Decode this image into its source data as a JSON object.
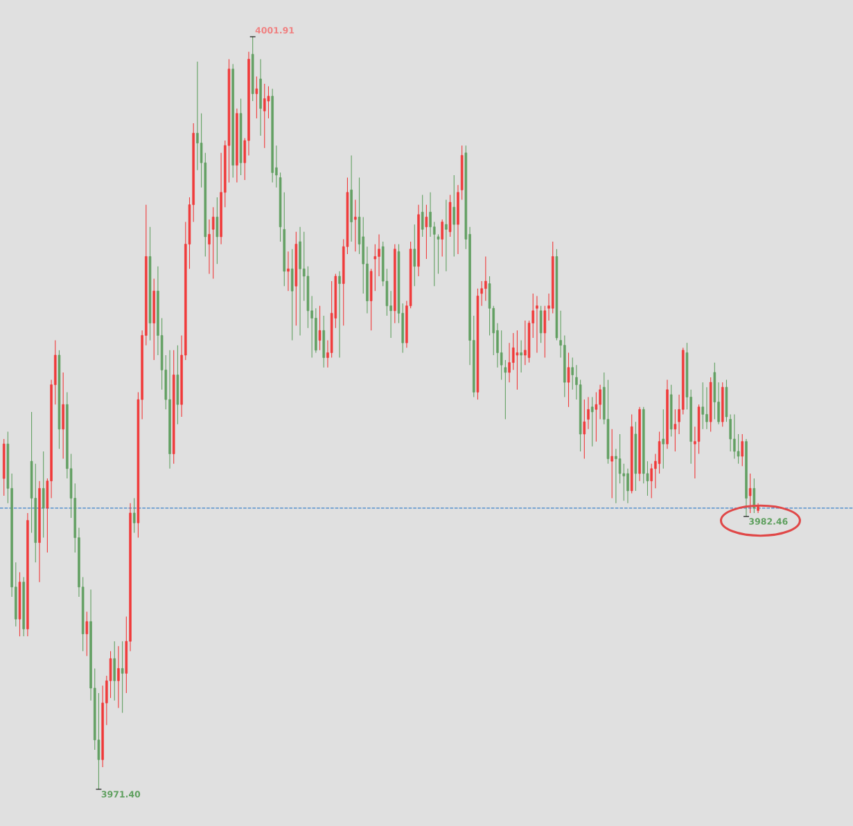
{
  "chart_data": {
    "type": "candlestick",
    "categories": [
      null,
      null,
      null,
      null,
      null,
      null,
      null,
      null,
      null,
      null,
      null,
      null,
      null,
      null,
      null,
      null,
      null,
      null,
      null,
      null,
      null,
      null,
      null,
      null,
      null,
      null,
      null,
      null,
      null,
      null,
      null,
      null,
      null,
      null,
      null,
      null,
      null,
      null,
      null,
      null,
      null,
      null,
      null,
      null,
      null,
      null,
      null,
      null,
      null,
      null,
      null,
      null,
      null,
      null,
      null,
      null,
      null,
      null,
      null,
      null,
      null,
      null,
      null,
      null,
      null,
      null,
      null,
      null,
      null,
      null,
      null,
      null,
      null,
      null,
      null,
      null,
      null,
      null,
      null,
      null,
      null,
      null,
      null,
      null,
      null,
      null,
      null,
      null,
      null,
      null,
      null,
      null,
      null,
      null,
      null,
      null,
      null,
      null,
      null,
      null,
      null,
      null,
      null,
      null,
      null,
      null,
      null,
      null,
      null,
      null,
      null,
      null,
      null,
      null,
      null,
      null,
      null,
      null,
      null,
      null,
      null,
      null,
      null,
      null,
      null,
      null,
      null,
      null,
      null,
      null,
      null,
      null,
      null,
      null,
      null,
      null,
      null,
      null,
      null,
      null,
      null,
      null,
      null,
      null,
      null,
      null,
      null,
      null,
      null,
      null,
      null,
      null,
      null,
      null,
      null,
      null,
      null,
      null,
      null,
      null,
      null,
      null,
      null,
      null,
      null,
      null,
      null,
      null,
      null,
      null,
      null,
      null,
      null,
      null,
      null,
      null,
      null,
      null,
      null,
      null,
      null,
      null,
      null,
      null,
      null,
      null,
      null,
      null,
      null,
      null,
      null,
      null
    ],
    "ohlc": [
      [
        3984.0,
        3985.6,
        3983.3,
        3985.4
      ],
      [
        3985.4,
        3985.9,
        3983.0,
        3983.6
      ],
      [
        3983.6,
        3984.2,
        3979.2,
        3979.6
      ],
      [
        3979.6,
        3980.6,
        3978.0,
        3978.3
      ],
      [
        3978.3,
        3980.2,
        3977.6,
        3979.8
      ],
      [
        3979.8,
        3980.0,
        3977.6,
        3977.9
      ],
      [
        3977.9,
        3982.6,
        3977.6,
        3982.3
      ],
      [
        3984.7,
        3986.7,
        3981.8,
        3983.2
      ],
      [
        3983.2,
        3984.6,
        3980.6,
        3981.4
      ],
      [
        3981.4,
        3983.9,
        3979.8,
        3983.6
      ],
      [
        3983.6,
        3985.1,
        3981.6,
        3982.8
      ],
      [
        3982.8,
        3984.0,
        3981.0,
        3983.9
      ],
      [
        3983.9,
        3988.0,
        3983.2,
        3987.8
      ],
      [
        3987.8,
        3989.6,
        3987.0,
        3989.0
      ],
      [
        3989.0,
        3989.2,
        3985.2,
        3986.0
      ],
      [
        3986.0,
        3988.3,
        3984.8,
        3987.0
      ],
      [
        3987.0,
        3987.5,
        3984.0,
        3984.4
      ],
      [
        3984.4,
        3985.0,
        3982.4,
        3983.2
      ],
      [
        3983.2,
        3983.8,
        3981.0,
        3981.6
      ],
      [
        3981.6,
        3982.0,
        3979.2,
        3979.6
      ],
      [
        3979.6,
        3980.0,
        3977.0,
        3977.7
      ],
      [
        3977.7,
        3978.6,
        3976.8,
        3978.2
      ],
      [
        3978.2,
        3979.5,
        3975.0,
        3975.5
      ],
      [
        3975.5,
        3976.3,
        3973.0,
        3973.4
      ],
      [
        3973.4,
        3975.3,
        3971.4,
        3972.6
      ],
      [
        3972.6,
        3975.6,
        3972.3,
        3974.9
      ],
      [
        3974.9,
        3976.0,
        3974.0,
        3975.8
      ],
      [
        3975.8,
        3977.0,
        3975.1,
        3976.7
      ],
      [
        3976.7,
        3977.4,
        3975.0,
        3975.8
      ],
      [
        3975.8,
        3977.2,
        3974.7,
        3976.3
      ],
      [
        3976.3,
        3977.4,
        3974.5,
        3976.1
      ],
      [
        3976.1,
        3978.4,
        3975.3,
        3977.4
      ],
      [
        3977.4,
        3983.0,
        3977.0,
        3982.6
      ],
      [
        3982.6,
        3983.2,
        3981.8,
        3982.2
      ],
      [
        3982.2,
        3987.5,
        3981.6,
        3987.2
      ],
      [
        3987.2,
        3990.0,
        3986.4,
        3989.8
      ],
      [
        3989.8,
        3995.1,
        3989.4,
        3993.0
      ],
      [
        3993.0,
        3994.2,
        3989.6,
        3990.3
      ],
      [
        3990.3,
        3992.1,
        3988.8,
        3991.6
      ],
      [
        3991.6,
        3992.6,
        3989.0,
        3989.8
      ],
      [
        3989.8,
        3990.5,
        3987.6,
        3988.4
      ],
      [
        3988.4,
        3989.0,
        3986.8,
        3987.2
      ],
      [
        3987.2,
        3989.2,
        3984.4,
        3985.0
      ],
      [
        3985.0,
        3989.2,
        3984.6,
        3988.2
      ],
      [
        3988.2,
        3989.4,
        3986.2,
        3987.0
      ],
      [
        3987.0,
        3989.8,
        3986.5,
        3989.0
      ],
      [
        3989.0,
        3994.4,
        3988.8,
        3993.5
      ],
      [
        3993.5,
        3995.4,
        3992.5,
        3995.1
      ],
      [
        3995.1,
        3998.4,
        3994.4,
        3998.0
      ],
      [
        3998.0,
        4000.9,
        3996.5,
        3997.6
      ],
      [
        3997.6,
        3998.8,
        3995.8,
        3996.8
      ],
      [
        3996.8,
        3997.2,
        3993.0,
        3993.8
      ],
      [
        3993.5,
        3994.5,
        3992.3,
        3993.9
      ],
      [
        3994.1,
        3995.0,
        3992.1,
        3994.6
      ],
      [
        3994.6,
        3995.4,
        3992.7,
        3993.8
      ],
      [
        3993.8,
        3997.2,
        3993.5,
        3995.6
      ],
      [
        3995.6,
        3997.7,
        3995.0,
        3997.5
      ],
      [
        3997.5,
        4001.0,
        3996.0,
        4000.6
      ],
      [
        4000.6,
        4000.8,
        3996.2,
        3996.7
      ],
      [
        3996.7,
        3999.0,
        3996.0,
        3998.8
      ],
      [
        3998.8,
        3999.4,
        3996.3,
        3996.8
      ],
      [
        3996.8,
        3997.8,
        3996.1,
        3997.7
      ],
      [
        3997.7,
        4001.3,
        3997.1,
        4001.0
      ],
      [
        4001.2,
        4001.91,
        3999.3,
        3999.6
      ],
      [
        3999.6,
        4000.3,
        3998.6,
        3999.8
      ],
      [
        4000.2,
        4001.0,
        3997.9,
        3999.0
      ],
      [
        3998.9,
        4000.0,
        3997.4,
        3999.4
      ],
      [
        3999.3,
        3999.9,
        3998.6,
        3999.5
      ],
      [
        3999.5,
        3999.8,
        3996.0,
        3996.4
      ],
      [
        3996.6,
        3997.5,
        3995.8,
        3996.3
      ],
      [
        3996.2,
        3996.4,
        3993.6,
        3994.2
      ],
      [
        3994.1,
        3995.6,
        3991.8,
        3992.4
      ],
      [
        3992.4,
        3993.2,
        3991.6,
        3992.5
      ],
      [
        3992.5,
        3993.3,
        3989.6,
        3991.6
      ],
      [
        3991.8,
        3994.0,
        3990.2,
        3993.5
      ],
      [
        3993.6,
        3994.2,
        3989.8,
        3992.5
      ],
      [
        3992.5,
        3994.0,
        3991.2,
        3992.2
      ],
      [
        3992.2,
        3992.6,
        3990.1,
        3990.8
      ],
      [
        3990.8,
        3991.4,
        3988.9,
        3990.5
      ],
      [
        3990.5,
        3990.9,
        3989.1,
        3989.2
      ],
      [
        3989.6,
        3991.0,
        3989.2,
        3990.0
      ],
      [
        3990.0,
        3990.6,
        3988.5,
        3988.9
      ],
      [
        3988.9,
        3989.6,
        3988.5,
        3989.1
      ],
      [
        3989.1,
        3992.0,
        3988.9,
        3990.7
      ],
      [
        3990.5,
        3992.3,
        3990.1,
        3992.2
      ],
      [
        3992.2,
        3992.4,
        3988.9,
        3991.9
      ],
      [
        3991.9,
        3993.7,
        3990.2,
        3993.4
      ],
      [
        3993.4,
        3996.2,
        3993.1,
        3995.6
      ],
      [
        3995.7,
        3997.1,
        3993.6,
        3994.4
      ],
      [
        3994.5,
        3995.3,
        3993.2,
        3994.6
      ],
      [
        3994.6,
        3996.2,
        3993.1,
        3993.5
      ],
      [
        3993.8,
        3994.6,
        3991.5,
        3992.7
      ],
      [
        3992.7,
        3993.4,
        3990.7,
        3991.2
      ],
      [
        3991.2,
        3992.5,
        3990.0,
        3992.4
      ],
      [
        3992.9,
        3993.5,
        3991.6,
        3993.0
      ],
      [
        3993.0,
        3993.9,
        3992.2,
        3993.3
      ],
      [
        3993.4,
        3993.6,
        3991.8,
        3992.0
      ],
      [
        3992.0,
        3992.5,
        3990.6,
        3991.0
      ],
      [
        3991.0,
        3991.6,
        3989.7,
        3990.8
      ],
      [
        3990.8,
        3993.5,
        3990.3,
        3993.3
      ],
      [
        3993.2,
        3993.5,
        3990.3,
        3990.7
      ],
      [
        3990.7,
        3991.1,
        3989.1,
        3989.5
      ],
      [
        3989.5,
        3991.2,
        3989.3,
        3991.0
      ],
      [
        3991.0,
        3993.6,
        3990.9,
        3993.3
      ],
      [
        3993.3,
        3994.3,
        3991.8,
        3992.6
      ],
      [
        3992.6,
        3995.1,
        3992.2,
        3994.7
      ],
      [
        3994.8,
        3995.5,
        3993.8,
        3994.1
      ],
      [
        3994.2,
        3995.1,
        3992.9,
        3994.6
      ],
      [
        3994.8,
        3995.6,
        3993.8,
        3994.2
      ],
      [
        3994.2,
        3994.4,
        3991.8,
        3993.9
      ],
      [
        3993.8,
        3993.9,
        3992.3,
        3993.7
      ],
      [
        3993.7,
        3994.5,
        3993.0,
        3994.4
      ],
      [
        3994.3,
        3995.3,
        3992.4,
        3994.1
      ],
      [
        3994.0,
        3995.5,
        3993.8,
        3995.2
      ],
      [
        3995.0,
        3996.3,
        3993.0,
        3994.3
      ],
      [
        3994.3,
        3995.9,
        3993.1,
        3995.6
      ],
      [
        3995.7,
        3997.5,
        3995.3,
        3997.1
      ],
      [
        3997.2,
        3997.5,
        3993.3,
        3993.7
      ],
      [
        3993.9,
        3994.2,
        3988.6,
        3989.6
      ],
      [
        3989.6,
        3990.6,
        3987.3,
        3987.5
      ],
      [
        3987.5,
        3991.7,
        3987.2,
        3991.4
      ],
      [
        3991.5,
        3992.0,
        3991.0,
        3991.7
      ],
      [
        3991.7,
        3993.0,
        3991.2,
        3992.0
      ],
      [
        3991.9,
        3992.2,
        3989.8,
        3990.9
      ],
      [
        3990.9,
        3991.0,
        3989.0,
        3989.9
      ],
      [
        3990.0,
        3990.3,
        3988.5,
        3989.1
      ],
      [
        3989.1,
        3990.0,
        3988.0,
        3988.6
      ],
      [
        3988.5,
        3988.8,
        3986.4,
        3988.3
      ],
      [
        3988.3,
        3989.5,
        3987.9,
        3988.7
      ],
      [
        3988.7,
        3989.9,
        3988.4,
        3989.3
      ],
      [
        3989.0,
        3990.0,
        3987.6,
        3989.1
      ],
      [
        3989.1,
        3989.6,
        3988.3,
        3989.0
      ],
      [
        3989.0,
        3990.4,
        3988.6,
        3989.2
      ],
      [
        3988.9,
        3990.4,
        3988.7,
        3990.3
      ],
      [
        3990.3,
        3991.5,
        3989.7,
        3990.8
      ],
      [
        3990.9,
        3991.4,
        3989.1,
        3991.0
      ],
      [
        3990.8,
        3991.0,
        3989.5,
        3989.9
      ],
      [
        3989.9,
        3991.0,
        3988.9,
        3990.8
      ],
      [
        3990.9,
        3991.5,
        3990.4,
        3991.0
      ],
      [
        3990.9,
        3993.6,
        3990.7,
        3993.0
      ],
      [
        3993.0,
        3993.3,
        3989.6,
        3989.7
      ],
      [
        3989.6,
        3990.8,
        3988.9,
        3989.4
      ],
      [
        3989.4,
        3989.8,
        3987.3,
        3987.9
      ],
      [
        3987.9,
        3989.1,
        3986.9,
        3988.5
      ],
      [
        3988.5,
        3988.9,
        3987.6,
        3988.2
      ],
      [
        3988.1,
        3988.6,
        3987.2,
        3987.8
      ],
      [
        3987.8,
        3988.0,
        3985.1,
        3985.8
      ],
      [
        3985.8,
        3987.2,
        3984.8,
        3986.3
      ],
      [
        3986.4,
        3987.3,
        3986.0,
        3986.8
      ],
      [
        3986.9,
        3987.3,
        3985.3,
        3986.7
      ],
      [
        3986.8,
        3987.5,
        3985.5,
        3987.0
      ],
      [
        3987.0,
        3987.8,
        3986.4,
        3987.6
      ],
      [
        3987.7,
        3988.3,
        3986.2,
        3986.4
      ],
      [
        3986.4,
        3988.0,
        3984.6,
        3984.8
      ],
      [
        3984.7,
        3986.0,
        3983.2,
        3984.9
      ],
      [
        3984.9,
        3985.2,
        3983.0,
        3984.8
      ],
      [
        3984.8,
        3985.8,
        3983.8,
        3984.2
      ],
      [
        3984.2,
        3984.6,
        3983.1,
        3984.1
      ],
      [
        3984.2,
        3984.4,
        3983.0,
        3983.5
      ],
      [
        3983.5,
        3986.6,
        3983.4,
        3986.1
      ],
      [
        3985.8,
        3986.3,
        3983.5,
        3984.2
      ],
      [
        3984.2,
        3986.9,
        3983.9,
        3986.8
      ],
      [
        3986.8,
        3986.9,
        3983.8,
        3984.2
      ],
      [
        3984.2,
        3984.7,
        3983.3,
        3983.9
      ],
      [
        3983.9,
        3984.6,
        3983.2,
        3984.4
      ],
      [
        3984.4,
        3985.0,
        3983.6,
        3984.7
      ],
      [
        3984.6,
        3985.9,
        3984.2,
        3985.5
      ],
      [
        3985.6,
        3986.8,
        3984.4,
        3985.4
      ],
      [
        3985.4,
        3988.0,
        3985.2,
        3987.6
      ],
      [
        3987.4,
        3987.8,
        3985.7,
        3986.0
      ],
      [
        3986.0,
        3986.8,
        3985.1,
        3986.2
      ],
      [
        3986.3,
        3987.4,
        3985.8,
        3986.8
      ],
      [
        3986.8,
        3989.3,
        3986.6,
        3989.2
      ],
      [
        3989.1,
        3989.5,
        3986.8,
        3987.3
      ],
      [
        3987.3,
        3987.6,
        3984.6,
        3985.5
      ],
      [
        3985.4,
        3986.1,
        3984.0,
        3985.5
      ],
      [
        3985.5,
        3987.0,
        3985.0,
        3986.9
      ],
      [
        3986.9,
        3987.9,
        3986.0,
        3986.6
      ],
      [
        3986.6,
        3987.7,
        3986.0,
        3986.3
      ],
      [
        3986.3,
        3988.1,
        3985.9,
        3987.9
      ],
      [
        3988.3,
        3988.7,
        3986.4,
        3987.1
      ],
      [
        3987.1,
        3987.9,
        3986.2,
        3986.3
      ],
      [
        3986.3,
        3987.9,
        3986.1,
        3987.7
      ],
      [
        3987.7,
        3988.0,
        3986.3,
        3986.5
      ],
      [
        3986.4,
        3986.6,
        3985.1,
        3985.6
      ],
      [
        3985.6,
        3986.6,
        3984.8,
        3985.1
      ],
      [
        3985.1,
        3985.8,
        3984.6,
        3984.9
      ],
      [
        3984.9,
        3985.8,
        3984.5,
        3985.5
      ],
      [
        3985.5,
        3985.6,
        3982.46,
        3983.2
      ],
      [
        3983.3,
        3984.2,
        3982.6,
        3983.6
      ],
      [
        3983.6,
        3984.0,
        3982.6,
        3982.8
      ],
      [
        3982.7,
        3983.0,
        3982.6,
        3982.9
      ]
    ],
    "colors": [
      "#f03a3a",
      "#62a062",
      "#62a062",
      "#62a062",
      "#f03a3a",
      "#62a062",
      "#f03a3a",
      "#62a062",
      "#62a062",
      "#f03a3a",
      "#62a062",
      "#f03a3a",
      "#f03a3a",
      "#f03a3a",
      "#62a062",
      "#f03a3a",
      "#62a062",
      "#62a062",
      "#62a062",
      "#62a062",
      "#62a062",
      "#f03a3a",
      "#62a062",
      "#62a062",
      "#62a062",
      "#f03a3a",
      "#f03a3a",
      "#f03a3a",
      "#62a062",
      "#f03a3a",
      "#62a062",
      "#f03a3a",
      "#f03a3a",
      "#62a062",
      "#f03a3a",
      "#f03a3a",
      "#f03a3a",
      "#62a062",
      "#f03a3a",
      "#62a062",
      "#62a062",
      "#62a062",
      "#62a062",
      "#f03a3a",
      "#62a062",
      "#f03a3a",
      "#f03a3a",
      "#f03a3a",
      "#f03a3a",
      "#62a062",
      "#62a062",
      "#62a062",
      "#f03a3a",
      "#f03a3a",
      "#62a062",
      "#f03a3a",
      "#f03a3a",
      "#f03a3a",
      "#62a062",
      "#f03a3a",
      "#62a062",
      "#f03a3a",
      "#f03a3a",
      "#62a062",
      "#f03a3a",
      "#62a062",
      "#f03a3a",
      "#f03a3a",
      "#62a062",
      "#62a062",
      "#62a062",
      "#62a062",
      "#f03a3a",
      "#62a062",
      "#f03a3a",
      "#62a062",
      "#62a062",
      "#62a062",
      "#62a062",
      "#62a062",
      "#f03a3a",
      "#62a062",
      "#f03a3a",
      "#f03a3a",
      "#f03a3a",
      "#62a062",
      "#f03a3a",
      "#f03a3a",
      "#62a062",
      "#f03a3a",
      "#62a062",
      "#62a062",
      "#62a062",
      "#f03a3a",
      "#f03a3a",
      "#f03a3a",
      "#62a062",
      "#62a062",
      "#62a062",
      "#f03a3a",
      "#62a062",
      "#62a062",
      "#f03a3a",
      "#f03a3a",
      "#62a062",
      "#f03a3a",
      "#62a062",
      "#f03a3a",
      "#62a062",
      "#62a062",
      "#62a062",
      "#f03a3a",
      "#62a062",
      "#f03a3a",
      "#62a062",
      "#f03a3a",
      "#f03a3a",
      "#62a062",
      "#62a062",
      "#62a062",
      "#f03a3a",
      "#f03a3a",
      "#f03a3a",
      "#62a062",
      "#62a062",
      "#62a062",
      "#62a062",
      "#62a062",
      "#f03a3a",
      "#f03a3a",
      "#f03a3a",
      "#62a062",
      "#f03a3a",
      "#f03a3a",
      "#f03a3a",
      "#f03a3a",
      "#62a062",
      "#f03a3a",
      "#f03a3a",
      "#f03a3a",
      "#62a062",
      "#62a062",
      "#62a062",
      "#f03a3a",
      "#62a062",
      "#62a062",
      "#62a062",
      "#f03a3a",
      "#f03a3a",
      "#62a062",
      "#f03a3a",
      "#f03a3a",
      "#62a062",
      "#62a062",
      "#f03a3a",
      "#62a062",
      "#62a062",
      "#62a062",
      "#62a062",
      "#f03a3a",
      "#62a062",
      "#f03a3a",
      "#62a062",
      "#62a062",
      "#f03a3a",
      "#f03a3a",
      "#f03a3a",
      "#62a062",
      "#f03a3a",
      "#62a062",
      "#f03a3a",
      "#f03a3a",
      "#f03a3a",
      "#62a062",
      "#62a062",
      "#f03a3a",
      "#f03a3a",
      "#62a062",
      "#62a062",
      "#f03a3a",
      "#62a062",
      "#62a062",
      "#f03a3a",
      "#62a062",
      "#62a062",
      "#62a062",
      "#62a062",
      "#f03a3a",
      "#62a062",
      "#f03a3a",
      "#62a062",
      "#f03a3a"
    ],
    "ref_lines": [
      {
        "axis": "y",
        "value": 3982.8,
        "color": "#3a80c8",
        "line_style": "dashed"
      }
    ],
    "annotations": [
      "4001.91",
      "3971.40",
      "3982.46"
    ]
  }
}
